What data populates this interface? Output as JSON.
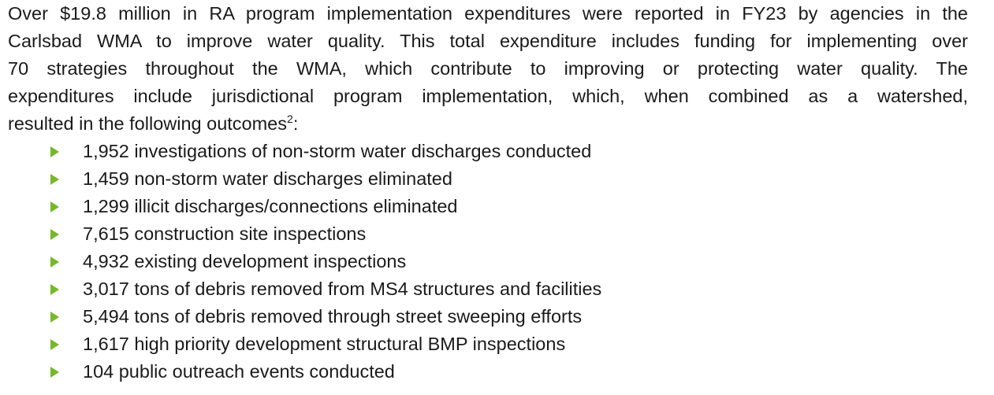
{
  "paragraph": {
    "lines": [
      "Over $19.8 million in RA program implementation expenditures were reported in FY23 by agencies in the",
      "Carlsbad WMA to improve water quality. This total expenditure includes funding for implementing over",
      "70 strategies throughout the WMA, which contribute to improving or protecting water quality. The",
      "expenditures include jurisdictional program implementation, which, when combined as a watershed,"
    ],
    "last_line_text": "resulted in the following outcomes",
    "footnote_ref": "2",
    "last_line_suffix": ":"
  },
  "bullet_color": "#76b82a",
  "bullet_icon": "triangle-right-icon",
  "outcomes": [
    "1,952 investigations of non-storm water discharges conducted",
    "1,459 non-storm water discharges eliminated",
    "1,299 illicit discharges/connections eliminated",
    "7,615 construction site inspections",
    "4,932 existing development inspections",
    "3,017 tons of debris removed from MS4 structures and facilities",
    "5,494 tons of debris removed through street sweeping efforts",
    "1,617 high priority development structural BMP inspections",
    "104 public outreach events conducted"
  ]
}
